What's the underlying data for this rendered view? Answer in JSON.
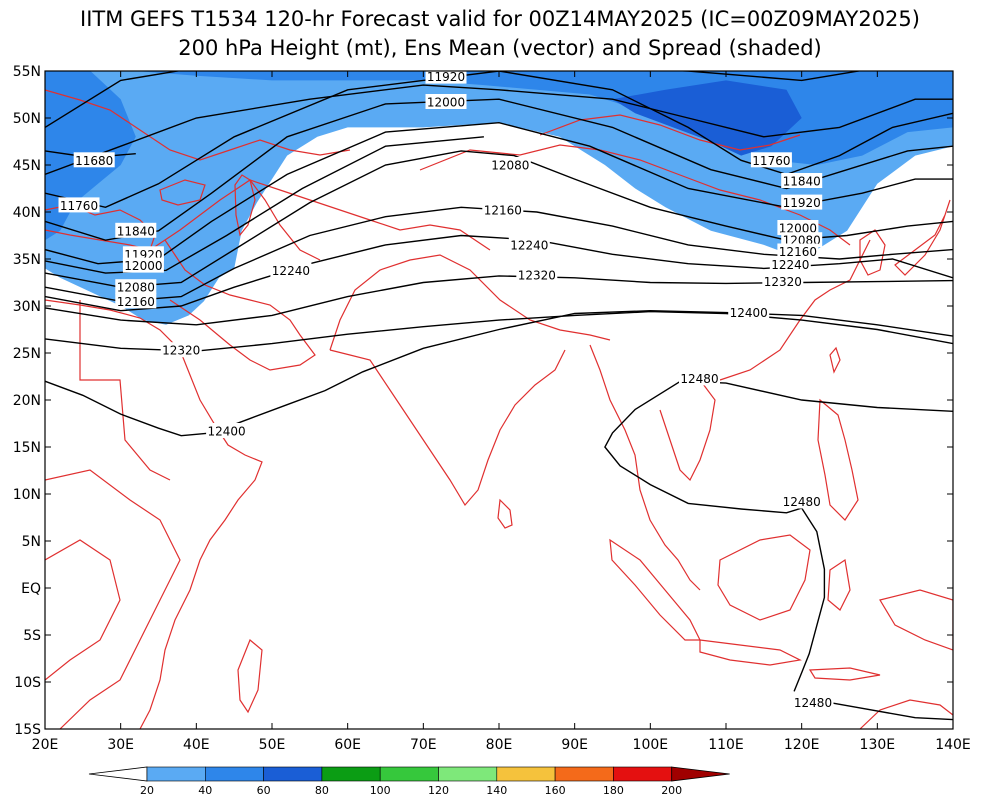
{
  "title": {
    "line1": "IITM GEFS T1534 120-hr Forecast valid for 00Z14MAY2025 (IC=00Z09MAY2025)",
    "line2": "200 hPa Height (mt), Ens Mean (vector) and Spread (shaded)"
  },
  "map": {
    "lon_range": [
      20,
      140
    ],
    "lat_range": [
      -15,
      55
    ],
    "lat_ticks": [
      {
        "value": 55,
        "label": "55N"
      },
      {
        "value": 50,
        "label": "50N"
      },
      {
        "value": 45,
        "label": "45N"
      },
      {
        "value": 40,
        "label": "40N"
      },
      {
        "value": 35,
        "label": "35N"
      },
      {
        "value": 30,
        "label": "30N"
      },
      {
        "value": 25,
        "label": "25N"
      },
      {
        "value": 20,
        "label": "20N"
      },
      {
        "value": 15,
        "label": "15N"
      },
      {
        "value": 10,
        "label": "10N"
      },
      {
        "value": 5,
        "label": "5N"
      },
      {
        "value": 0,
        "label": "EQ"
      },
      {
        "value": -5,
        "label": "5S"
      },
      {
        "value": -10,
        "label": "10S"
      },
      {
        "value": -15,
        "label": "15S"
      }
    ],
    "lon_ticks": [
      {
        "value": 20,
        "label": "20E"
      },
      {
        "value": 30,
        "label": "30E"
      },
      {
        "value": 40,
        "label": "40E"
      },
      {
        "value": 50,
        "label": "50E"
      },
      {
        "value": 60,
        "label": "60E"
      },
      {
        "value": 70,
        "label": "70E"
      },
      {
        "value": 80,
        "label": "80E"
      },
      {
        "value": 90,
        "label": "90E"
      },
      {
        "value": 100,
        "label": "100E"
      },
      {
        "value": 110,
        "label": "110E"
      },
      {
        "value": 120,
        "label": "120E"
      },
      {
        "value": 130,
        "label": "130E"
      },
      {
        "value": 140,
        "label": "140E"
      }
    ],
    "coast_color": "#e03030",
    "contour_color": "#000000"
  },
  "contours": [
    {
      "level": "11920",
      "points": [
        [
          20,
          49
        ],
        [
          30,
          54
        ],
        [
          45,
          56
        ],
        [
          60,
          57
        ],
        [
          75,
          56
        ],
        [
          90,
          55.5
        ],
        [
          105,
          55
        ],
        [
          120,
          54
        ],
        [
          135,
          56
        ],
        [
          140,
          57
        ]
      ],
      "labels": [
        {
          "text": "11920",
          "at": [
            73,
            54.4
          ]
        }
      ]
    },
    {
      "level": "12000",
      "points": [
        [
          20,
          44
        ],
        [
          30,
          47
        ],
        [
          40,
          50
        ],
        [
          55,
          52
        ],
        [
          70,
          53.5
        ],
        [
          80,
          53
        ],
        [
          95,
          52
        ],
        [
          105,
          50
        ],
        [
          115,
          48
        ],
        [
          125,
          49
        ],
        [
          135,
          52
        ],
        [
          140,
          52
        ]
      ],
      "labels": [
        {
          "text": "12000",
          "at": [
            73,
            51.7
          ]
        },
        {
          "text": "12000",
          "at": [
            119.5,
            38.3
          ]
        }
      ]
    },
    {
      "level": "11680",
      "points": [
        [
          20,
          46.5
        ],
        [
          26,
          45.8
        ],
        [
          32,
          46.2
        ]
      ],
      "labels": [
        {
          "text": "11680",
          "at": [
            26.5,
            45.5
          ]
        }
      ]
    },
    {
      "level": "11760",
      "points": [
        [
          20,
          42
        ],
        [
          28,
          40.5
        ],
        [
          35,
          43
        ],
        [
          45,
          48
        ],
        [
          60,
          53
        ],
        [
          80,
          55
        ],
        [
          95,
          53
        ],
        [
          105,
          49
        ],
        [
          112,
          45.5
        ],
        [
          118,
          44
        ],
        [
          125,
          46
        ],
        [
          132,
          49
        ],
        [
          140,
          50.5
        ]
      ],
      "labels": [
        {
          "text": "11760",
          "at": [
            24.5,
            40.7
          ]
        },
        {
          "text": "11760",
          "at": [
            116,
            45.5
          ]
        }
      ]
    },
    {
      "level": "11840",
      "points": [
        [
          20,
          39
        ],
        [
          28,
          37
        ],
        [
          35,
          38
        ],
        [
          42,
          42
        ],
        [
          52,
          48
        ],
        [
          65,
          51.5
        ],
        [
          80,
          52
        ],
        [
          95,
          49
        ],
        [
          108,
          44.5
        ],
        [
          118,
          42.5
        ],
        [
          126,
          44.5
        ],
        [
          134,
          46.5
        ],
        [
          140,
          47
        ]
      ],
      "labels": [
        {
          "text": "11840",
          "at": [
            32,
            38
          ]
        },
        {
          "text": "11840",
          "at": [
            120,
            43.3
          ]
        }
      ]
    },
    {
      "level": "11920b",
      "points": [
        [
          20,
          36
        ],
        [
          27,
          34.5
        ],
        [
          35,
          35
        ],
        [
          42,
          39
        ],
        [
          52,
          44
        ],
        [
          65,
          48.5
        ],
        [
          80,
          49.5
        ],
        [
          92,
          47
        ],
        [
          105,
          42.5
        ],
        [
          118,
          40.5
        ],
        [
          128,
          42
        ],
        [
          135,
          43.5
        ],
        [
          140,
          43.5
        ]
      ],
      "labels": [
        {
          "text": "11920",
          "at": [
            33,
            35.5
          ]
        },
        {
          "text": "11920",
          "at": [
            120,
            41
          ]
        }
      ]
    },
    {
      "level": "12080",
      "points": [
        [
          20,
          33.5
        ],
        [
          30,
          32
        ],
        [
          38,
          32.5
        ],
        [
          45,
          36
        ],
        [
          55,
          41
        ],
        [
          65,
          45
        ],
        [
          75,
          46.5
        ],
        [
          82,
          46
        ],
        [
          90,
          43.5
        ],
        [
          100,
          40.5
        ],
        [
          110,
          38.5
        ],
        [
          118,
          37
        ],
        [
          126,
          37.5
        ],
        [
          134,
          38.5
        ],
        [
          140,
          39
        ]
      ],
      "labels": [
        {
          "text": "12080",
          "at": [
            81.5,
            45
          ]
        },
        {
          "text": "12080",
          "at": [
            32,
            32
          ]
        },
        {
          "text": "12080",
          "at": [
            120,
            37
          ]
        }
      ]
    },
    {
      "level": "12000c",
      "points": [
        [
          20,
          34.8
        ],
        [
          28,
          33.5
        ],
        [
          36,
          33.8
        ],
        [
          44,
          37.5
        ],
        [
          54,
          42.5
        ],
        [
          65,
          47
        ],
        [
          78,
          48
        ]
      ],
      "labels": [
        {
          "text": "12000",
          "at": [
            33,
            34.3
          ]
        }
      ]
    },
    {
      "level": "12160",
      "points": [
        [
          20,
          32
        ],
        [
          30,
          30.5
        ],
        [
          38,
          31
        ],
        [
          45,
          34
        ],
        [
          55,
          37.5
        ],
        [
          65,
          39.5
        ],
        [
          75,
          40.5
        ],
        [
          85,
          40
        ],
        [
          95,
          38.5
        ],
        [
          105,
          36.5
        ],
        [
          115,
          35.5
        ],
        [
          125,
          35
        ],
        [
          132,
          35.5
        ],
        [
          140,
          36
        ]
      ],
      "labels": [
        {
          "text": "12160",
          "at": [
            80.5,
            40.2
          ]
        },
        {
          "text": "12160",
          "at": [
            32,
            30.5
          ]
        },
        {
          "text": "12160",
          "at": [
            119.5,
            35.8
          ]
        }
      ]
    },
    {
      "level": "12240",
      "points": [
        [
          20,
          31
        ],
        [
          30,
          29.5
        ],
        [
          38,
          30
        ],
        [
          45,
          32
        ],
        [
          55,
          34.5
        ],
        [
          65,
          36.5
        ],
        [
          75,
          37.5
        ],
        [
          85,
          37
        ],
        [
          95,
          35.5
        ],
        [
          105,
          34.5
        ],
        [
          115,
          34
        ],
        [
          125,
          34.5
        ],
        [
          132,
          35
        ],
        [
          140,
          33
        ]
      ],
      "labels": [
        {
          "text": "12240",
          "at": [
            52.5,
            33.8
          ]
        },
        {
          "text": "12240",
          "at": [
            84,
            36.5
          ]
        },
        {
          "text": "12240",
          "at": [
            118.5,
            34.4
          ]
        }
      ]
    },
    {
      "level": "12320",
      "points": [
        [
          20,
          29.8
        ],
        [
          30,
          28.5
        ],
        [
          40,
          28
        ],
        [
          50,
          29
        ],
        [
          60,
          31
        ],
        [
          70,
          32.5
        ],
        [
          80,
          33.2
        ],
        [
          90,
          33
        ],
        [
          100,
          32.5
        ],
        [
          110,
          32.4
        ],
        [
          120,
          32.5
        ],
        [
          130,
          32.6
        ],
        [
          140,
          32.7
        ]
      ],
      "labels": [
        {
          "text": "12320",
          "at": [
            85,
            33.3
          ]
        },
        {
          "text": "12320",
          "at": [
            117.5,
            32.6
          ]
        }
      ]
    },
    {
      "level": "12320b",
      "points": [
        [
          20,
          26.5
        ],
        [
          30,
          25.5
        ],
        [
          40,
          25.2
        ],
        [
          50,
          26
        ],
        [
          60,
          27
        ],
        [
          70,
          27.8
        ],
        [
          80,
          28.5
        ],
        [
          90,
          29
        ],
        [
          100,
          29.4
        ],
        [
          110,
          29.2
        ],
        [
          120,
          28.5
        ],
        [
          130,
          27.5
        ],
        [
          140,
          26
        ]
      ],
      "labels": [
        {
          "text": "12320",
          "at": [
            38,
            25.3
          ]
        }
      ]
    },
    {
      "level": "12400",
      "points": [
        [
          20,
          22
        ],
        [
          25,
          20.5
        ],
        [
          30,
          18.5
        ],
        [
          35,
          17
        ],
        [
          38,
          16.2
        ],
        [
          42,
          16.5
        ],
        [
          47,
          18
        ],
        [
          52,
          19.5
        ],
        [
          57,
          21
        ],
        [
          62,
          23
        ],
        [
          70,
          25.5
        ],
        [
          80,
          27.5
        ],
        [
          90,
          29.2
        ],
        [
          100,
          29.5
        ],
        [
          110,
          29.3
        ],
        [
          120,
          29
        ],
        [
          130,
          28
        ],
        [
          140,
          26.8
        ]
      ],
      "labels": [
        {
          "text": "12400",
          "at": [
            44,
            16.7
          ]
        },
        {
          "text": "12400",
          "at": [
            113,
            29.3
          ]
        }
      ]
    },
    {
      "level": "12480",
      "points": [
        [
          140,
          18.8
        ],
        [
          130,
          19.2
        ],
        [
          120,
          20
        ],
        [
          110,
          21.8
        ],
        [
          104,
          22
        ],
        [
          98,
          19
        ],
        [
          95,
          16.5
        ],
        [
          94,
          15
        ],
        [
          96,
          13
        ],
        [
          100,
          11
        ],
        [
          105,
          9
        ],
        [
          112,
          8.4
        ],
        [
          118,
          8
        ],
        [
          120,
          8.5
        ],
        [
          122,
          6
        ],
        [
          123,
          2
        ],
        [
          123,
          -1
        ],
        [
          122,
          -4
        ],
        [
          121,
          -7
        ],
        [
          120,
          -9
        ],
        [
          119,
          -11
        ]
      ],
      "labels": [
        {
          "text": "12480",
          "at": [
            106.5,
            22.3
          ]
        },
        {
          "text": "12480",
          "at": [
            120,
            9.2
          ]
        }
      ]
    },
    {
      "level": "12480b",
      "points": [
        [
          121,
          -11.8
        ],
        [
          128,
          -12.8
        ],
        [
          135,
          -13.8
        ],
        [
          140,
          -14
        ]
      ],
      "labels": [
        {
          "text": "12480",
          "at": [
            121.5,
            -12.2
          ]
        }
      ]
    }
  ],
  "shading": {
    "light": [
      [
        20,
        55
      ],
      [
        140,
        55
      ],
      [
        140,
        47
      ],
      [
        135,
        46
      ],
      [
        130,
        43
      ],
      [
        126,
        38
      ],
      [
        120,
        35
      ],
      [
        115,
        36.5
      ],
      [
        108,
        38
      ],
      [
        102,
        40.5
      ],
      [
        98,
        42.5
      ],
      [
        94,
        45
      ],
      [
        88,
        48
      ],
      [
        80,
        49.5
      ],
      [
        70,
        49
      ],
      [
        60,
        49
      ],
      [
        56,
        48
      ],
      [
        52,
        46
      ],
      [
        50,
        43.5
      ],
      [
        48,
        41
      ],
      [
        46,
        38
      ],
      [
        45,
        34
      ],
      [
        43,
        33
      ],
      [
        41,
        30.5
      ],
      [
        39,
        29
      ],
      [
        36,
        28
      ],
      [
        33,
        28.5
      ],
      [
        30,
        30
      ],
      [
        26,
        31.5
      ],
      [
        22,
        33
      ],
      [
        20,
        34
      ]
    ],
    "medium": [
      [
        26,
        55
      ],
      [
        140,
        55
      ],
      [
        140,
        49
      ],
      [
        134,
        48.5
      ],
      [
        128,
        46
      ],
      [
        122,
        45
      ],
      [
        116,
        45.5
      ],
      [
        110,
        47.5
      ],
      [
        104,
        49.5
      ],
      [
        98,
        51
      ],
      [
        92,
        52.5
      ],
      [
        85,
        53
      ],
      [
        78,
        53.5
      ],
      [
        70,
        54
      ],
      [
        60,
        54
      ],
      [
        50,
        54
      ],
      [
        40,
        54.5
      ],
      [
        32,
        55
      ]
    ],
    "dark": [
      [
        95,
        52
      ],
      [
        102,
        53
      ],
      [
        110,
        54
      ],
      [
        118,
        53
      ],
      [
        120,
        50
      ],
      [
        116,
        47
      ],
      [
        112,
        46
      ],
      [
        108,
        47.5
      ],
      [
        103,
        49
      ],
      [
        98,
        50.5
      ]
    ],
    "medium_left": [
      [
        20,
        55
      ],
      [
        26,
        55
      ],
      [
        30,
        52
      ],
      [
        32,
        48
      ],
      [
        30,
        45
      ],
      [
        27,
        43
      ],
      [
        24,
        41
      ],
      [
        22,
        38
      ],
      [
        20,
        37
      ]
    ]
  },
  "colorbar": {
    "labels": [
      "20",
      "40",
      "60",
      "80",
      "100",
      "120",
      "140",
      "160",
      "180",
      "200"
    ],
    "colors": [
      "#5aaaf3",
      "#2e86ea",
      "#1a5ed6",
      "#0b9d14",
      "#36c83c",
      "#7ee87a",
      "#f5c23c",
      "#f46a1a",
      "#e41010"
    ],
    "low_color": "#ffffff",
    "high_color": "#a00000"
  }
}
